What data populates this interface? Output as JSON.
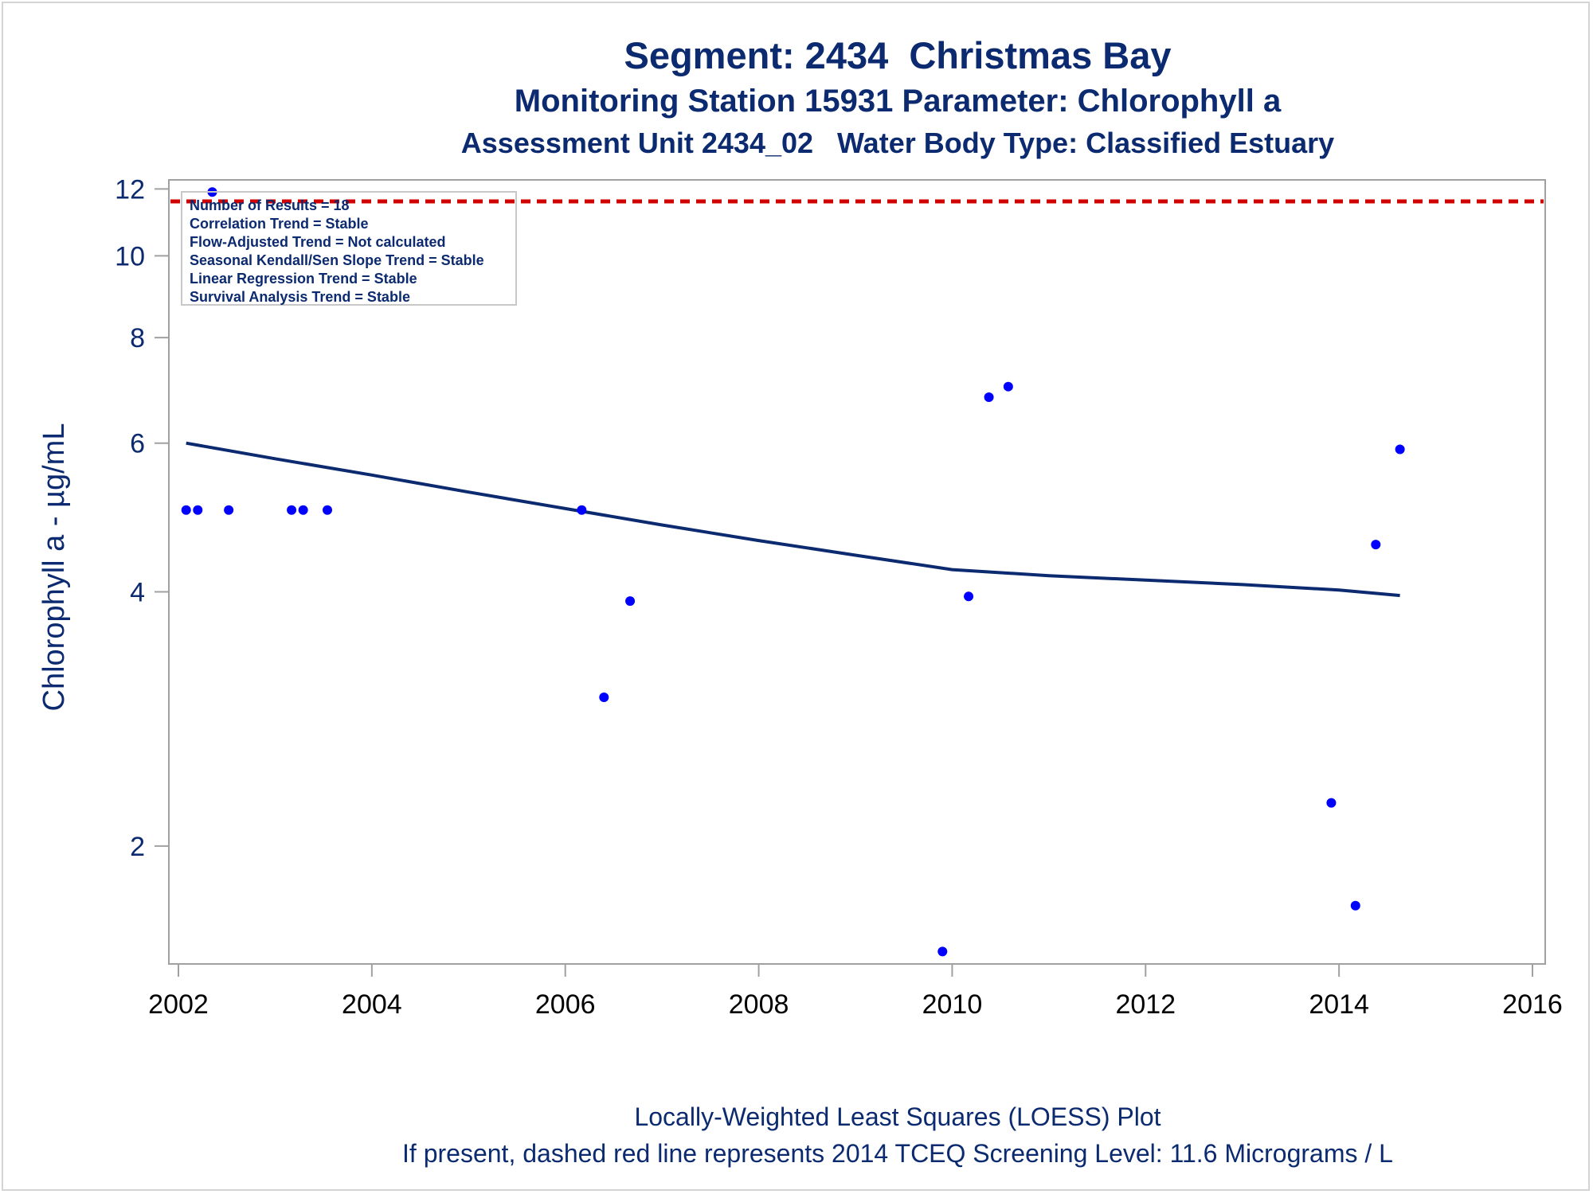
{
  "titles": {
    "line1": "Segment: 2434  Christmas Bay",
    "line2": "Monitoring Station 15931 Parameter: Chlorophyll a",
    "line3": "Assessment Unit 2434_02   Water Body Type: Classified Estuary"
  },
  "footnotes": {
    "line1": "Locally-Weighted Least Squares (LOESS) Plot",
    "line2": "If present, dashed red line represents 2014 TCEQ Screening Level: 11.6 Micrograms / L"
  },
  "inset": [
    "Number of Results = 18",
    "Correlation Trend = Stable",
    "Flow-Adjusted Trend = Not calculated",
    "Seasonal Kendall/Sen Slope Trend = Stable",
    "Linear Regression Trend = Stable",
    "Survival Analysis Trend = Stable"
  ],
  "colors": {
    "title": "#0b2a6f",
    "points": "#0000ff",
    "loess": "#0b2a6f",
    "reference": "#d00000",
    "axis": "#a0a0a0"
  },
  "chart_data": {
    "type": "scatter",
    "ylabel": "Chlorophyll a -  µg/mL",
    "yscale": "log",
    "xlim": [
      2002,
      2016
    ],
    "ylim": [
      1.45,
      12.3
    ],
    "xticks": [
      2002,
      2004,
      2006,
      2008,
      2010,
      2012,
      2014,
      2016
    ],
    "yticks": [
      2,
      4,
      6,
      8,
      10,
      12
    ],
    "points": [
      [
        2002.08,
        5.0
      ],
      [
        2002.2,
        5.0
      ],
      [
        2002.35,
        11.9
      ],
      [
        2002.52,
        5.0
      ],
      [
        2003.17,
        5.0
      ],
      [
        2003.29,
        5.0
      ],
      [
        2003.54,
        5.0
      ],
      [
        2006.17,
        5.0
      ],
      [
        2006.4,
        3.0
      ],
      [
        2006.67,
        3.9
      ],
      [
        2009.9,
        1.5
      ],
      [
        2010.17,
        3.95
      ],
      [
        2010.38,
        6.8
      ],
      [
        2010.58,
        7.0
      ],
      [
        2013.92,
        2.25
      ],
      [
        2014.17,
        1.7
      ],
      [
        2014.38,
        4.55
      ],
      [
        2014.63,
        5.9
      ]
    ],
    "loess": [
      [
        2002.08,
        6.0
      ],
      [
        2003.0,
        5.75
      ],
      [
        2004.0,
        5.5
      ],
      [
        2005.0,
        5.25
      ],
      [
        2006.0,
        5.02
      ],
      [
        2007.0,
        4.8
      ],
      [
        2008.0,
        4.6
      ],
      [
        2009.0,
        4.42
      ],
      [
        2010.0,
        4.25
      ],
      [
        2011.0,
        4.18
      ],
      [
        2012.0,
        4.13
      ],
      [
        2013.0,
        4.08
      ],
      [
        2014.0,
        4.02
      ],
      [
        2014.63,
        3.96
      ]
    ],
    "reference_line": 11.6
  }
}
